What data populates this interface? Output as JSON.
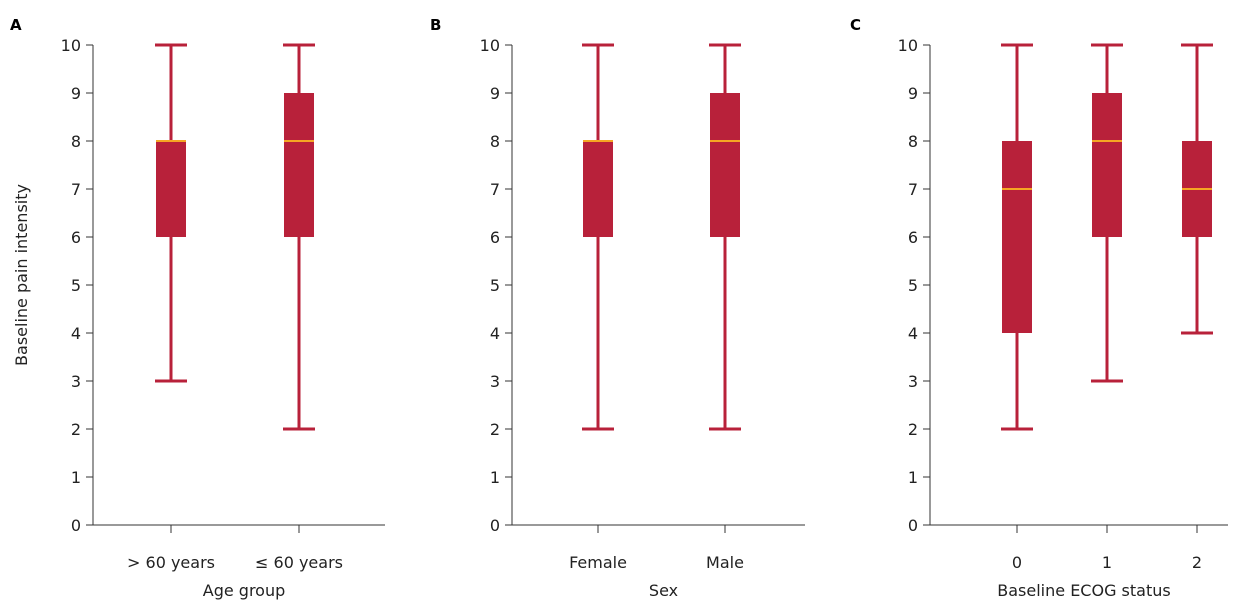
{
  "colors": {
    "box": "#b8213a",
    "median": "#f5a623",
    "axis": "#333333",
    "background": "#ffffff"
  },
  "chart_data": [
    {
      "type": "boxplot",
      "panel_label": "A",
      "xlabel": "Age group",
      "ylabel": "Baseline pain intensity",
      "ylim": [
        0,
        10
      ],
      "yticks": [
        0,
        1,
        2,
        3,
        4,
        5,
        6,
        7,
        8,
        9,
        10
      ],
      "categories": [
        "> 60 years",
        "≤ 60 years"
      ],
      "boxes": [
        {
          "min": 3,
          "q1": 6,
          "median": 8,
          "q3": 8,
          "max": 10
        },
        {
          "min": 2,
          "q1": 6,
          "median": 8,
          "q3": 9,
          "max": 10
        }
      ]
    },
    {
      "type": "boxplot",
      "panel_label": "B",
      "xlabel": "Sex",
      "ylabel": "",
      "ylim": [
        0,
        10
      ],
      "yticks": [
        0,
        1,
        2,
        3,
        4,
        5,
        6,
        7,
        8,
        9,
        10
      ],
      "categories": [
        "Female",
        "Male"
      ],
      "boxes": [
        {
          "min": 2,
          "q1": 6,
          "median": 8,
          "q3": 8,
          "max": 10
        },
        {
          "min": 2,
          "q1": 6,
          "median": 8,
          "q3": 9,
          "max": 10
        }
      ]
    },
    {
      "type": "boxplot",
      "panel_label": "C",
      "xlabel": "Baseline ECOG status",
      "ylabel": "",
      "ylim": [
        0,
        10
      ],
      "yticks": [
        0,
        1,
        2,
        3,
        4,
        5,
        6,
        7,
        8,
        9,
        10
      ],
      "categories": [
        "0",
        "1",
        "2"
      ],
      "boxes": [
        {
          "min": 2,
          "q1": 4,
          "median": 7,
          "q3": 8,
          "max": 10
        },
        {
          "min": 3,
          "q1": 6,
          "median": 8,
          "q3": 9,
          "max": 10
        },
        {
          "min": 4,
          "q1": 6,
          "median": 7,
          "q3": 8,
          "max": 10
        }
      ]
    }
  ]
}
